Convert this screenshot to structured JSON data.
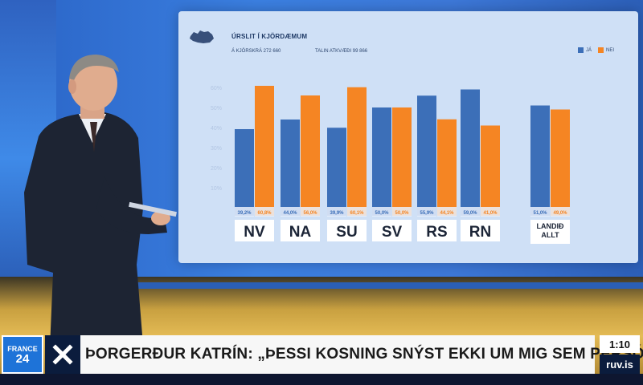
{
  "screen": {
    "title": "ÚRSLIT Í KJÖRDÆMUM",
    "subtitle_left": "Á KJÖRSKRÁ 272 660",
    "subtitle_right": "TALIN ATKVÆÐI 99 866",
    "legend": [
      {
        "label": "JÁ",
        "color": "#3c6fb8"
      },
      {
        "label": "NEI",
        "color": "#f58523"
      }
    ]
  },
  "chart_data": {
    "type": "bar",
    "categories": [
      "NV",
      "NA",
      "SU",
      "SV",
      "RS",
      "RN",
      "LANDIÐ ALLT"
    ],
    "series": [
      {
        "name": "JÁ",
        "color": "#3c6fb8",
        "values": [
          39.2,
          44.0,
          39.9,
          50.0,
          55.9,
          59.0,
          51.0
        ],
        "labels": [
          "39,2%",
          "44,0%",
          "39,9%",
          "50,0%",
          "55,9%",
          "59,0%",
          "51,0%"
        ]
      },
      {
        "name": "NEI",
        "color": "#f58523",
        "values": [
          60.8,
          56.0,
          60.1,
          50.0,
          44.1,
          41.0,
          49.0
        ],
        "labels": [
          "60,8%",
          "56,0%",
          "60,1%",
          "50,0%",
          "44,1%",
          "41,0%",
          "49,0%"
        ]
      }
    ],
    "yticks": [
      "60%",
      "50%",
      "40%",
      "30%",
      "20%",
      "10%"
    ],
    "ylim": [
      0,
      70
    ]
  },
  "lower_third": {
    "channel_line1": "FRANCE",
    "channel_line2": "24",
    "headline": "ÞORGERÐUR KATRÍN: „ÞESSI KOSNING SNÝST EKKI UM MIG SEM PERSÓNU“",
    "time": "1:10",
    "source": "ruv.is"
  }
}
